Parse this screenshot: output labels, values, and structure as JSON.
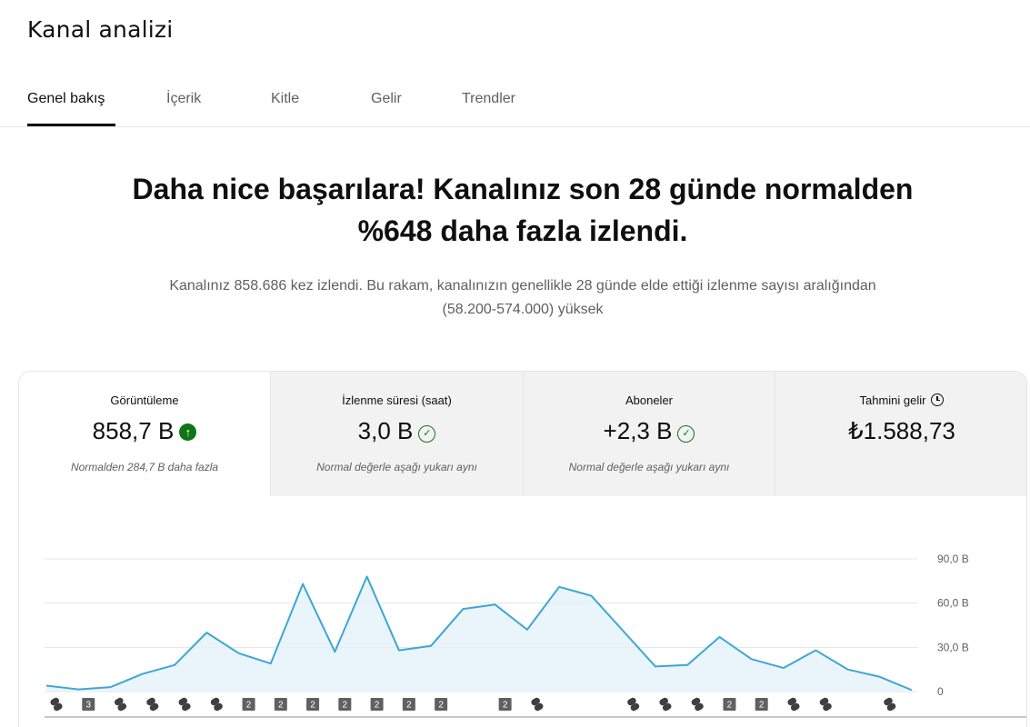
{
  "page": {
    "title": "Kanal analizi"
  },
  "tabs": [
    {
      "label": "Genel bakış",
      "active": true
    },
    {
      "label": "İçerik",
      "active": false
    },
    {
      "label": "Kitle",
      "active": false
    },
    {
      "label": "Gelir",
      "active": false
    },
    {
      "label": "Trendler",
      "active": false
    }
  ],
  "headline": {
    "line1": "Daha nice başarılara! Kanalınız son 28 günde normalden",
    "line2": "%648 daha fazla izlendi."
  },
  "subtext": {
    "line1": "Kanalınız 858.686 kez izlendi. Bu rakam, kanalınızın genellikle 28 günde elde ettiği izlenme sayısı aralığından",
    "line2": "(58.200-574.000) yüksek"
  },
  "metrics": [
    {
      "label": "Görüntüleme",
      "value": "858,7 B",
      "note": "Normalden 284,7 B daha fazla",
      "icon": "arrow-up-circle-icon",
      "active": true
    },
    {
      "label": "İzlenme süresi (saat)",
      "value": "3,0 B",
      "note": "Normal değerle aşağı yukarı aynı",
      "icon": "check-circle-icon",
      "active": false
    },
    {
      "label": "Aboneler",
      "value": "+2,3 B",
      "note": "Normal değerle aşağı yukarı aynı",
      "icon": "check-circle-icon",
      "active": false
    },
    {
      "label": "Tahmini gelir",
      "value": "₺1.588,73",
      "note": "",
      "icon": "clock-icon",
      "active": false
    }
  ],
  "colors": {
    "line": "#3ea6d2",
    "area": "#e3f2fa",
    "grid": "#e5e5e5",
    "positive": "#107516",
    "badge": "#606060"
  },
  "chart_data": {
    "type": "area",
    "y_ticks": [
      "0",
      "30,0 B",
      "60,0 B",
      "90,0 B"
    ],
    "y_tick_values": [
      0,
      30,
      60,
      90
    ],
    "ylim": [
      0,
      90
    ],
    "grid": true,
    "values": [
      4,
      1.5,
      3,
      12,
      18,
      40,
      26,
      19,
      73,
      27,
      78,
      28,
      31,
      56,
      59,
      42,
      71,
      65,
      41,
      17,
      18,
      37,
      22,
      16,
      28,
      15,
      10,
      1
    ],
    "markers": [
      "shorts",
      "3",
      "shorts",
      "shorts",
      "shorts",
      "shorts",
      "2",
      "2",
      "2",
      "2",
      "2",
      "2",
      "2",
      "",
      "2",
      "shorts",
      "",
      "",
      "shorts",
      "shorts",
      "shorts",
      "2",
      "2",
      "shorts",
      "shorts",
      "",
      "shorts",
      ""
    ]
  }
}
